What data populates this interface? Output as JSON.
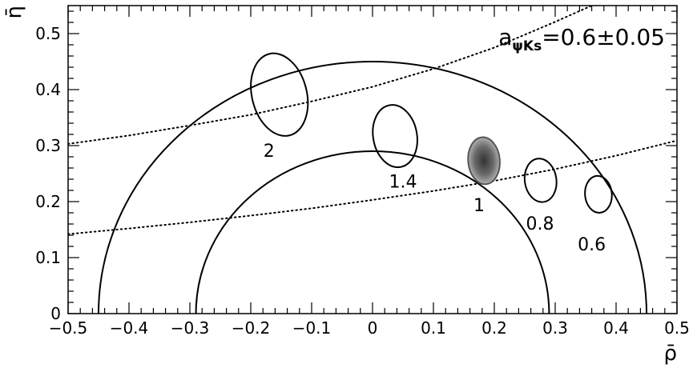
{
  "chart_data": {
    "type": "scatter",
    "title": "",
    "xlabel": "ρ̄",
    "ylabel": "η̄",
    "xlim": [
      -0.5,
      0.5
    ],
    "ylim": [
      0,
      0.55
    ],
    "x_ticks": [
      -0.5,
      -0.4,
      -0.3,
      -0.2,
      -0.1,
      0,
      0.1,
      0.2,
      0.3,
      0.4,
      0.5
    ],
    "x_tick_labels": [
      "−0.5",
      "−0.4",
      "−0.3",
      "−0.2",
      "−0.1",
      "0",
      "0.1",
      "0.2",
      "0.3",
      "0.4",
      "0.5"
    ],
    "y_ticks": [
      0,
      0.1,
      0.2,
      0.3,
      0.4,
      0.5
    ],
    "y_tick_labels": [
      "0",
      "0.1",
      "0.2",
      "0.3",
      "0.4",
      "0.5"
    ],
    "grid": false,
    "annotation": {
      "base": "a",
      "subscript": "ψKs",
      "rest": "=0.6±0.05",
      "position": "top-right"
    },
    "semicircles": [
      {
        "center": 0,
        "radius": 0.45
      },
      {
        "center": 0,
        "radius": 0.29
      }
    ],
    "dotted_curves": [
      {
        "points": [
          [
            -0.5,
            0.303
          ],
          [
            -0.4,
            0.318
          ],
          [
            -0.3,
            0.336
          ],
          [
            -0.2,
            0.355
          ],
          [
            -0.1,
            0.379
          ],
          [
            0,
            0.405
          ],
          [
            0.1,
            0.437
          ],
          [
            0.2,
            0.475
          ],
          [
            0.3,
            0.521
          ],
          [
            0.36,
            0.55
          ]
        ]
      },
      {
        "points": [
          [
            -0.5,
            0.142
          ],
          [
            -0.4,
            0.152
          ],
          [
            -0.3,
            0.163
          ],
          [
            -0.2,
            0.175
          ],
          [
            -0.1,
            0.188
          ],
          [
            0,
            0.203
          ],
          [
            0.1,
            0.219
          ],
          [
            0.2,
            0.237
          ],
          [
            0.3,
            0.258
          ],
          [
            0.4,
            0.282
          ],
          [
            0.5,
            0.309
          ]
        ]
      }
    ],
    "contours": [
      {
        "label": "2",
        "cx": -0.153,
        "cy": 0.391,
        "rx": 0.045,
        "ry": 0.075,
        "tilt": -14,
        "filled": false,
        "label_x": -0.17,
        "label_y": 0.28
      },
      {
        "label": "1.4",
        "cx": 0.037,
        "cy": 0.317,
        "rx": 0.036,
        "ry": 0.056,
        "tilt": -10,
        "filled": false,
        "label_x": 0.05,
        "label_y": 0.225
      },
      {
        "label": "1",
        "cx": 0.183,
        "cy": 0.273,
        "rx": 0.026,
        "ry": 0.042,
        "tilt": -5,
        "filled": true,
        "label_x": 0.175,
        "label_y": 0.183
      },
      {
        "label": "0.8",
        "cx": 0.276,
        "cy": 0.238,
        "rx": 0.026,
        "ry": 0.039,
        "tilt": -8,
        "filled": false,
        "label_x": 0.275,
        "label_y": 0.15
      },
      {
        "label": "0.6",
        "cx": 0.371,
        "cy": 0.213,
        "rx": 0.022,
        "ry": 0.033,
        "tilt": -5,
        "filled": false,
        "label_x": 0.36,
        "label_y": 0.113
      }
    ]
  }
}
